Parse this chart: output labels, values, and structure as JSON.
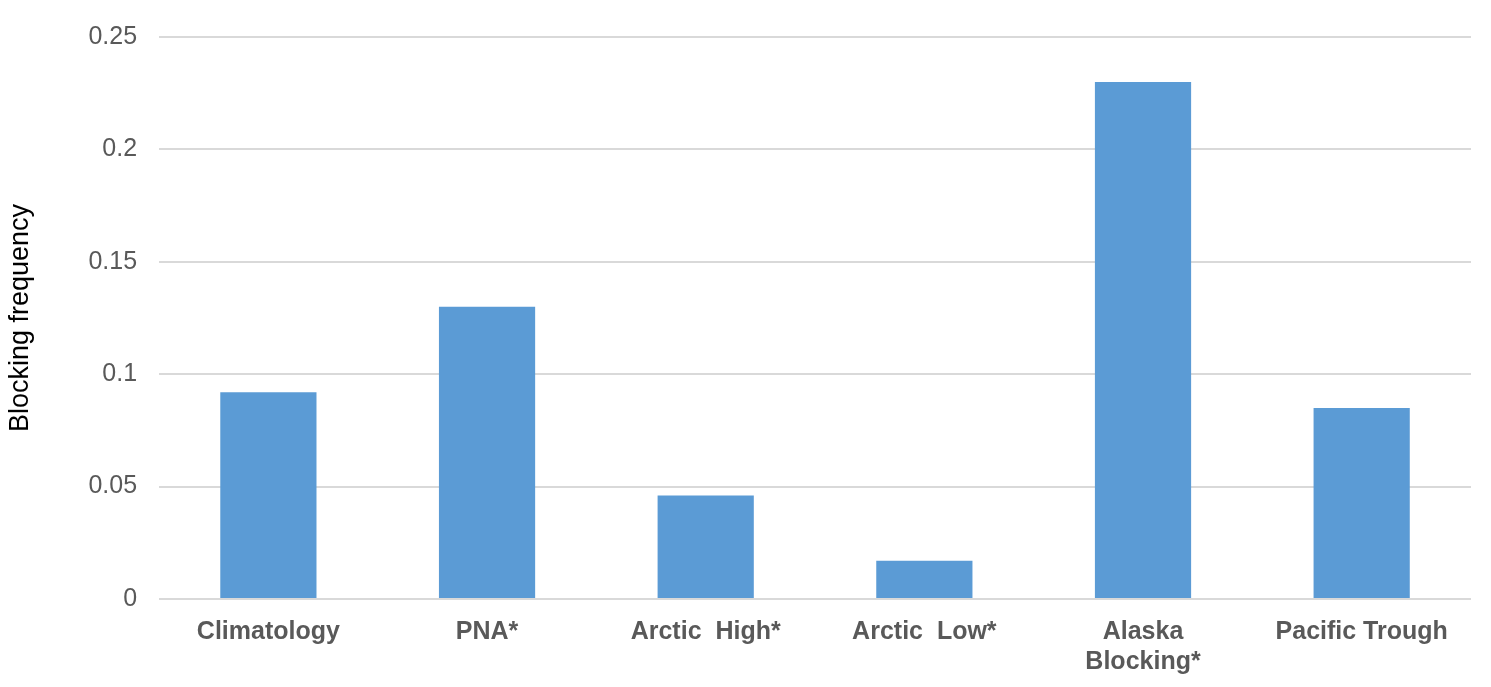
{
  "chart_data": {
    "type": "bar",
    "ylabel": "Blocking frequency",
    "categories": [
      "Climatology",
      "PNA*",
      "Arctic  High*",
      "Arctic  Low*",
      "Alaska Blocking*",
      "Pacific Trough"
    ],
    "values": [
      0.092,
      0.13,
      0.046,
      0.017,
      0.23,
      0.085
    ],
    "color": "#5b9bd5",
    "ylim": [
      0,
      0.25
    ],
    "yticks": [
      0,
      0.05,
      0.1,
      0.15,
      0.2,
      0.25
    ],
    "grid": "y",
    "legend": false
  }
}
